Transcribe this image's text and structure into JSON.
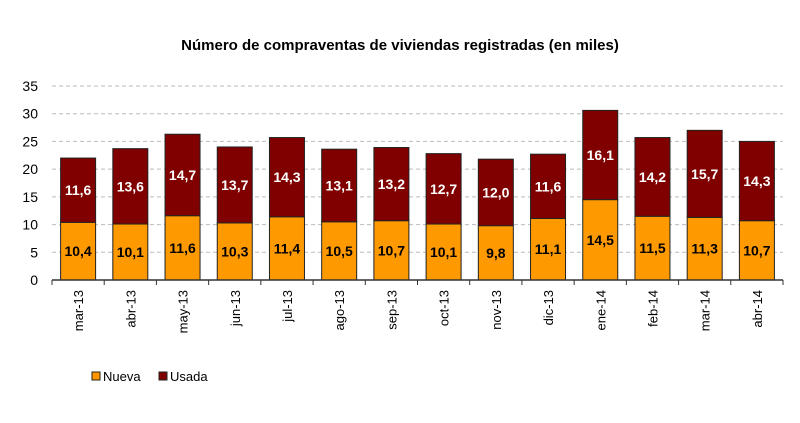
{
  "chart_data": {
    "type": "bar",
    "stacked": true,
    "title": "Número de compraventas de viviendas registradas (en miles)",
    "xlabel": "",
    "ylabel": "",
    "ylim": [
      0,
      35
    ],
    "yticks": [
      "0",
      "5",
      "10",
      "15",
      "20",
      "25",
      "30",
      "35"
    ],
    "grid": true,
    "legend_position": "bottom-left",
    "categories": [
      "mar-13",
      "abr-13",
      "may-13",
      "jun-13",
      "jul-13",
      "ago-13",
      "sep-13",
      "oct-13",
      "nov-13",
      "dic-13",
      "ene-14",
      "feb-14",
      "mar-14",
      "abr-14"
    ],
    "series": [
      {
        "name": "Nueva",
        "color": "#FF9900",
        "values": [
          10.4,
          10.1,
          11.6,
          10.3,
          11.4,
          10.5,
          10.7,
          10.1,
          9.8,
          11.1,
          14.5,
          11.5,
          11.3,
          10.7
        ],
        "labels": [
          "10,4",
          "10,1",
          "11,6",
          "10,3",
          "11,4",
          "10,5",
          "10,7",
          "10,1",
          "9,8",
          "11,1",
          "14,5",
          "11,5",
          "11,3",
          "10,7"
        ]
      },
      {
        "name": "Usada",
        "color": "#800000",
        "values": [
          11.6,
          13.6,
          14.7,
          13.7,
          14.3,
          13.1,
          13.2,
          12.7,
          12.0,
          11.6,
          16.1,
          14.2,
          15.7,
          14.3
        ],
        "labels": [
          "11,6",
          "13,6",
          "14,7",
          "13,7",
          "14,3",
          "13,1",
          "13,2",
          "12,7",
          "12,0",
          "11,6",
          "16,1",
          "14,2",
          "15,7",
          "14,3"
        ]
      }
    ]
  }
}
